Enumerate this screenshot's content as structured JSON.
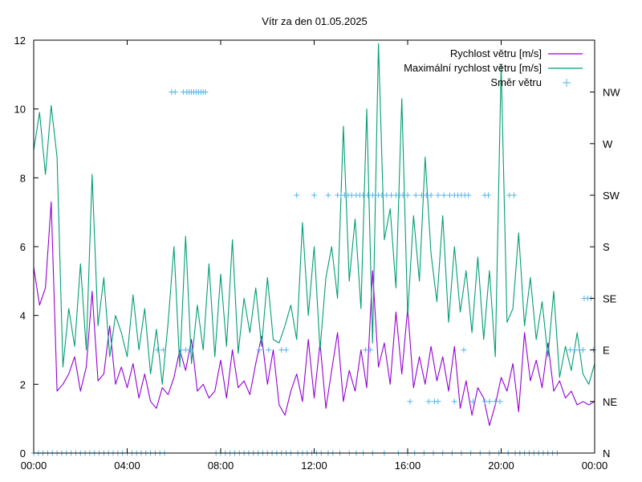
{
  "chart_data": {
    "type": "line",
    "title": "Vítr za den 01.05.2025",
    "xlabel": "",
    "ylabel": "",
    "x_ticks": [
      "00:00",
      "04:00",
      "08:00",
      "12:00",
      "16:00",
      "20:00",
      "00:00"
    ],
    "x_range_hours": [
      0,
      24
    ],
    "y_ticks": [
      "0",
      "2",
      "4",
      "6",
      "8",
      "10",
      "12"
    ],
    "ylim": [
      0,
      12
    ],
    "y2_ticks": [
      "N",
      "NE",
      "E",
      "SE",
      "S",
      "SW",
      "W",
      "NW"
    ],
    "grid": false,
    "legend_position": "top-right",
    "legend": [
      {
        "label": "Rychlost větru [m/s]",
        "style": "line",
        "color": "#9400d3"
      },
      {
        "label": "Maximální rychlost větru [m/s]",
        "style": "line",
        "color": "#009e73"
      },
      {
        "label": "Směr větru",
        "style": "points",
        "color": "#56b4e9"
      }
    ],
    "series": [
      {
        "name": "Rychlost větru [m/s]",
        "color": "#9400d3",
        "x_hours": [
          0,
          0.25,
          0.5,
          0.75,
          1,
          1.25,
          1.5,
          1.75,
          2,
          2.25,
          2.5,
          2.75,
          3,
          3.25,
          3.5,
          3.75,
          4,
          4.25,
          4.5,
          4.75,
          5,
          5.25,
          5.5,
          5.75,
          6,
          6.25,
          6.5,
          6.75,
          7,
          7.25,
          7.5,
          7.75,
          8,
          8.25,
          8.5,
          8.75,
          9,
          9.25,
          9.5,
          9.75,
          10,
          10.25,
          10.5,
          10.75,
          11,
          11.25,
          11.5,
          11.75,
          12,
          12.25,
          12.5,
          12.75,
          13,
          13.25,
          13.5,
          13.75,
          14,
          14.25,
          14.5,
          14.75,
          15,
          15.25,
          15.5,
          15.75,
          16,
          16.25,
          16.5,
          16.75,
          17,
          17.25,
          17.5,
          17.75,
          18,
          18.25,
          18.5,
          18.75,
          19,
          19.25,
          19.5,
          19.75,
          20,
          20.25,
          20.5,
          20.75,
          21,
          21.25,
          21.5,
          21.75,
          22,
          22.25,
          22.5,
          22.75,
          23,
          23.25,
          23.5,
          23.75,
          24
        ],
        "values": [
          5.4,
          4.3,
          4.8,
          7.3,
          1.8,
          2.0,
          2.3,
          2.8,
          1.8,
          2.5,
          4.7,
          2.1,
          2.3,
          3.7,
          2.0,
          2.5,
          1.9,
          2.6,
          1.6,
          2.3,
          1.5,
          1.3,
          1.9,
          1.7,
          2.2,
          3.0,
          2.4,
          3.3,
          1.8,
          2.0,
          1.6,
          1.8,
          2.7,
          1.6,
          3.0,
          1.9,
          2.1,
          1.7,
          2.6,
          3.4,
          2.0,
          3.0,
          1.4,
          1.1,
          1.8,
          2.3,
          1.5,
          3.3,
          1.6,
          3.2,
          1.3,
          2.4,
          3.5,
          1.5,
          2.4,
          1.8,
          3.0,
          1.9,
          5.3,
          2.5,
          3.2,
          2.0,
          4.1,
          2.3,
          4.2,
          1.9,
          2.8,
          2.0,
          3.1,
          2.1,
          2.8,
          1.8,
          3.1,
          1.3,
          2.1,
          1.1,
          1.9,
          1.6,
          0.8,
          1.4,
          2.2,
          1.8,
          2.6,
          1.2,
          3.5,
          2.1,
          2.7,
          1.9,
          3.2,
          1.8,
          2.1,
          1.6,
          1.8,
          1.4,
          1.5,
          1.4,
          1.5
        ]
      },
      {
        "name": "Maximální rychlost větru [m/s]",
        "color": "#009e73",
        "x_hours": [
          0,
          0.25,
          0.5,
          0.75,
          1,
          1.25,
          1.5,
          1.75,
          2,
          2.25,
          2.5,
          2.75,
          3,
          3.25,
          3.5,
          3.75,
          4,
          4.25,
          4.5,
          4.75,
          5,
          5.25,
          5.5,
          5.75,
          6,
          6.25,
          6.5,
          6.75,
          7,
          7.25,
          7.5,
          7.75,
          8,
          8.25,
          8.5,
          8.75,
          9,
          9.25,
          9.5,
          9.75,
          10,
          10.25,
          10.5,
          10.75,
          11,
          11.25,
          11.5,
          11.75,
          12,
          12.25,
          12.5,
          12.75,
          13,
          13.25,
          13.5,
          13.75,
          14,
          14.25,
          14.5,
          14.75,
          15,
          15.25,
          15.5,
          15.75,
          16,
          16.25,
          16.5,
          16.75,
          17,
          17.25,
          17.5,
          17.75,
          18,
          18.25,
          18.5,
          18.75,
          19,
          19.25,
          19.5,
          19.75,
          20,
          20.25,
          20.5,
          20.75,
          21,
          21.25,
          21.5,
          21.75,
          22,
          22.25,
          22.5,
          22.75,
          23,
          23.25,
          23.5,
          23.75,
          24
        ],
        "values": [
          8.8,
          9.9,
          8.1,
          10.1,
          8.6,
          2.5,
          4.2,
          3.1,
          5.5,
          3.0,
          8.1,
          3.7,
          5.1,
          2.8,
          4.0,
          3.5,
          2.8,
          4.6,
          3.0,
          4.2,
          2.3,
          3.6,
          2.0,
          3.8,
          6.0,
          2.5,
          6.3,
          2.6,
          4.3,
          3.0,
          5.5,
          2.8,
          5.2,
          3.1,
          6.2,
          2.9,
          4.5,
          3.5,
          4.8,
          3.1,
          5.1,
          3.3,
          3.2,
          3.7,
          4.3,
          3.3,
          6.7,
          4.0,
          6.0,
          3.0,
          5.1,
          6.0,
          4.5,
          9.5,
          5.0,
          6.8,
          4.2,
          10.0,
          3.2,
          11.9,
          6.2,
          7.1,
          4.8,
          10.3,
          4.0,
          6.9,
          5.0,
          8.6,
          5.8,
          4.4,
          6.9,
          3.8,
          6.0,
          4.1,
          5.3,
          3.5,
          5.7,
          3.3,
          5.3,
          2.8,
          11.3,
          3.8,
          4.2,
          6.4,
          3.7,
          5.1,
          3.3,
          4.4,
          2.8,
          4.7,
          2.2,
          3.1,
          2.4,
          3.5,
          2.3,
          2.0,
          2.6
        ]
      },
      {
        "name": "Směr větru",
        "color": "#56b4e9",
        "style": "points",
        "categories": [
          "N",
          "NE",
          "E",
          "SE",
          "S",
          "SW",
          "W",
          "NW"
        ],
        "points": [
          {
            "x": 5.9,
            "dir": "NW"
          },
          {
            "x": 6.05,
            "dir": "NW"
          },
          {
            "x": 6.4,
            "dir": "NW"
          },
          {
            "x": 6.55,
            "dir": "NW"
          },
          {
            "x": 6.65,
            "dir": "NW"
          },
          {
            "x": 6.75,
            "dir": "NW"
          },
          {
            "x": 6.85,
            "dir": "NW"
          },
          {
            "x": 6.95,
            "dir": "NW"
          },
          {
            "x": 7.05,
            "dir": "NW"
          },
          {
            "x": 7.15,
            "dir": "NW"
          },
          {
            "x": 7.25,
            "dir": "NW"
          },
          {
            "x": 7.35,
            "dir": "NW"
          },
          {
            "x": 11.25,
            "dir": "SW"
          },
          {
            "x": 12.0,
            "dir": "SW"
          },
          {
            "x": 12.6,
            "dir": "SW"
          },
          {
            "x": 13.0,
            "dir": "SW"
          },
          {
            "x": 13.15,
            "dir": "SW"
          },
          {
            "x": 13.3,
            "dir": "SW"
          },
          {
            "x": 13.45,
            "dir": "SW"
          },
          {
            "x": 13.6,
            "dir": "SW"
          },
          {
            "x": 13.8,
            "dir": "SW"
          },
          {
            "x": 13.95,
            "dir": "SW"
          },
          {
            "x": 14.1,
            "dir": "SW"
          },
          {
            "x": 14.3,
            "dir": "SW"
          },
          {
            "x": 14.5,
            "dir": "SW"
          },
          {
            "x": 14.75,
            "dir": "SW"
          },
          {
            "x": 14.9,
            "dir": "SW"
          },
          {
            "x": 15.1,
            "dir": "SW"
          },
          {
            "x": 15.3,
            "dir": "SW"
          },
          {
            "x": 15.5,
            "dir": "SW"
          },
          {
            "x": 15.65,
            "dir": "SW"
          },
          {
            "x": 15.8,
            "dir": "SW"
          },
          {
            "x": 16.0,
            "dir": "SW"
          },
          {
            "x": 16.35,
            "dir": "SW"
          },
          {
            "x": 16.6,
            "dir": "SW"
          },
          {
            "x": 16.8,
            "dir": "SW"
          },
          {
            "x": 17.0,
            "dir": "SW"
          },
          {
            "x": 17.3,
            "dir": "SW"
          },
          {
            "x": 17.55,
            "dir": "SW"
          },
          {
            "x": 17.8,
            "dir": "SW"
          },
          {
            "x": 18.0,
            "dir": "SW"
          },
          {
            "x": 18.15,
            "dir": "SW"
          },
          {
            "x": 18.3,
            "dir": "SW"
          },
          {
            "x": 18.45,
            "dir": "SW"
          },
          {
            "x": 18.6,
            "dir": "SW"
          },
          {
            "x": 19.3,
            "dir": "SW"
          },
          {
            "x": 19.45,
            "dir": "SW"
          },
          {
            "x": 20.35,
            "dir": "SW"
          },
          {
            "x": 20.55,
            "dir": "SW"
          },
          {
            "x": 5.3,
            "dir": "E"
          },
          {
            "x": 5.55,
            "dir": "E"
          },
          {
            "x": 6.3,
            "dir": "E"
          },
          {
            "x": 6.5,
            "dir": "E"
          },
          {
            "x": 6.7,
            "dir": "E"
          },
          {
            "x": 9.65,
            "dir": "E"
          },
          {
            "x": 10.05,
            "dir": "E"
          },
          {
            "x": 10.6,
            "dir": "E"
          },
          {
            "x": 10.8,
            "dir": "E"
          },
          {
            "x": 14.2,
            "dir": "E"
          },
          {
            "x": 14.4,
            "dir": "E"
          },
          {
            "x": 18.4,
            "dir": "E"
          },
          {
            "x": 22.95,
            "dir": "E"
          },
          {
            "x": 23.15,
            "dir": "E"
          },
          {
            "x": 23.35,
            "dir": "E"
          },
          {
            "x": 23.5,
            "dir": "E"
          },
          {
            "x": 23.95,
            "dir": "E"
          },
          {
            "x": 23.55,
            "dir": "SE"
          },
          {
            "x": 23.7,
            "dir": "SE"
          },
          {
            "x": 23.85,
            "dir": "SE"
          },
          {
            "x": 16.1,
            "dir": "NE"
          },
          {
            "x": 16.9,
            "dir": "NE"
          },
          {
            "x": 17.15,
            "dir": "NE"
          },
          {
            "x": 17.3,
            "dir": "NE"
          },
          {
            "x": 18.0,
            "dir": "NE"
          },
          {
            "x": 18.8,
            "dir": "NE"
          },
          {
            "x": 19.3,
            "dir": "NE"
          },
          {
            "x": 19.5,
            "dir": "NE"
          },
          {
            "x": 19.75,
            "dir": "NE"
          },
          {
            "x": 19.95,
            "dir": "NE"
          },
          {
            "x": 0.0,
            "dir": "N"
          },
          {
            "x": 0.2,
            "dir": "N"
          },
          {
            "x": 0.4,
            "dir": "N"
          },
          {
            "x": 0.6,
            "dir": "N"
          },
          {
            "x": 0.8,
            "dir": "N"
          },
          {
            "x": 1.0,
            "dir": "N"
          },
          {
            "x": 1.2,
            "dir": "N"
          },
          {
            "x": 1.4,
            "dir": "N"
          },
          {
            "x": 1.6,
            "dir": "N"
          },
          {
            "x": 1.8,
            "dir": "N"
          },
          {
            "x": 2.0,
            "dir": "N"
          },
          {
            "x": 2.2,
            "dir": "N"
          },
          {
            "x": 2.4,
            "dir": "N"
          },
          {
            "x": 2.6,
            "dir": "N"
          },
          {
            "x": 2.8,
            "dir": "N"
          },
          {
            "x": 3.0,
            "dir": "N"
          },
          {
            "x": 3.2,
            "dir": "N"
          },
          {
            "x": 3.4,
            "dir": "N"
          },
          {
            "x": 3.6,
            "dir": "N"
          },
          {
            "x": 3.8,
            "dir": "N"
          },
          {
            "x": 4.0,
            "dir": "N"
          },
          {
            "x": 4.2,
            "dir": "N"
          },
          {
            "x": 4.4,
            "dir": "N"
          },
          {
            "x": 4.6,
            "dir": "N"
          },
          {
            "x": 4.8,
            "dir": "N"
          },
          {
            "x": 5.0,
            "dir": "N"
          },
          {
            "x": 5.2,
            "dir": "N"
          },
          {
            "x": 5.4,
            "dir": "N"
          },
          {
            "x": 5.6,
            "dir": "N"
          },
          {
            "x": 7.8,
            "dir": "N"
          },
          {
            "x": 8.0,
            "dir": "N"
          },
          {
            "x": 8.2,
            "dir": "N"
          },
          {
            "x": 8.4,
            "dir": "N"
          },
          {
            "x": 8.6,
            "dir": "N"
          },
          {
            "x": 8.8,
            "dir": "N"
          },
          {
            "x": 9.0,
            "dir": "N"
          },
          {
            "x": 9.2,
            "dir": "N"
          },
          {
            "x": 9.4,
            "dir": "N"
          },
          {
            "x": 9.6,
            "dir": "N"
          },
          {
            "x": 9.8,
            "dir": "N"
          },
          {
            "x": 10.0,
            "dir": "N"
          },
          {
            "x": 10.2,
            "dir": "N"
          },
          {
            "x": 10.4,
            "dir": "N"
          },
          {
            "x": 10.6,
            "dir": "N"
          },
          {
            "x": 10.8,
            "dir": "N"
          },
          {
            "x": 11.0,
            "dir": "N"
          },
          {
            "x": 11.3,
            "dir": "N"
          },
          {
            "x": 11.5,
            "dir": "N"
          },
          {
            "x": 11.7,
            "dir": "N"
          },
          {
            "x": 11.9,
            "dir": "N"
          },
          {
            "x": 12.1,
            "dir": "N"
          },
          {
            "x": 12.3,
            "dir": "N"
          },
          {
            "x": 12.6,
            "dir": "N"
          },
          {
            "x": 12.8,
            "dir": "N"
          },
          {
            "x": 13.1,
            "dir": "N"
          },
          {
            "x": 13.5,
            "dir": "N"
          },
          {
            "x": 13.8,
            "dir": "N"
          },
          {
            "x": 14.1,
            "dir": "N"
          },
          {
            "x": 14.5,
            "dir": "N"
          },
          {
            "x": 15.0,
            "dir": "N"
          },
          {
            "x": 15.6,
            "dir": "N"
          },
          {
            "x": 16.0,
            "dir": "N"
          },
          {
            "x": 16.3,
            "dir": "N"
          },
          {
            "x": 16.7,
            "dir": "N"
          },
          {
            "x": 17.1,
            "dir": "N"
          },
          {
            "x": 17.5,
            "dir": "N"
          },
          {
            "x": 17.9,
            "dir": "N"
          },
          {
            "x": 18.3,
            "dir": "N"
          },
          {
            "x": 18.7,
            "dir": "N"
          },
          {
            "x": 19.1,
            "dir": "N"
          },
          {
            "x": 19.5,
            "dir": "N"
          },
          {
            "x": 19.9,
            "dir": "N"
          },
          {
            "x": 20.3,
            "dir": "N"
          },
          {
            "x": 20.6,
            "dir": "N"
          },
          {
            "x": 20.8,
            "dir": "N"
          },
          {
            "x": 21.0,
            "dir": "N"
          },
          {
            "x": 21.2,
            "dir": "N"
          },
          {
            "x": 21.4,
            "dir": "N"
          },
          {
            "x": 21.6,
            "dir": "N"
          },
          {
            "x": 21.8,
            "dir": "N"
          },
          {
            "x": 22.0,
            "dir": "N"
          },
          {
            "x": 22.2,
            "dir": "N"
          },
          {
            "x": 22.4,
            "dir": "N"
          }
        ]
      }
    ]
  }
}
